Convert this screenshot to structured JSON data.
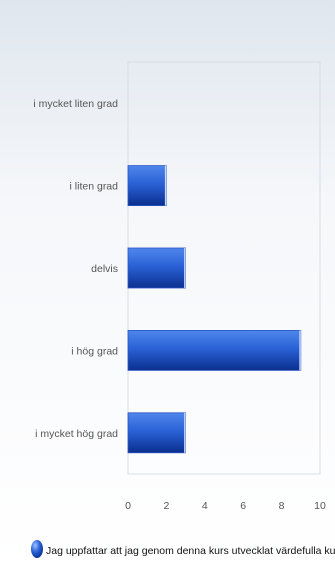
{
  "chart_data": {
    "type": "bar",
    "orientation": "horizontal",
    "categories": [
      "i mycket liten grad",
      "i liten grad",
      "delvis",
      "i hög grad",
      "i mycket hög grad"
    ],
    "series": [
      {
        "name": "Jag uppfattar att jag genom denna kurs utvecklat värdefulla kunskaper",
        "values": [
          0,
          2,
          3,
          9,
          3
        ]
      }
    ],
    "xlim": [
      0,
      10
    ],
    "x_ticks": [
      "0",
      "2",
      "4",
      "6",
      "8",
      "10"
    ],
    "grid": false,
    "legend_position": "bottom",
    "colors": {
      "bar_light": "#4f86ec",
      "bar_dark": "#0b2f8f",
      "bar_edge": "#2b55c4",
      "plot_border": "#d9dde3",
      "axis_text": "#555555",
      "legend_text": "#111111",
      "background_top": "#dfe6ee",
      "background_bottom": "#ffffff"
    }
  }
}
